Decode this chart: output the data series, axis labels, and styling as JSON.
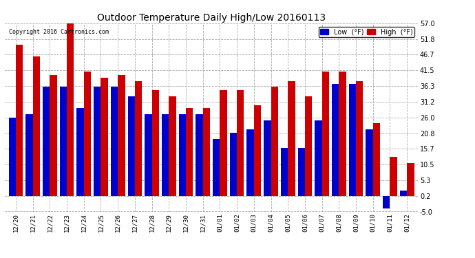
{
  "title": "Outdoor Temperature Daily High/Low 20160113",
  "copyright": "Copyright 2016 Cartronics.com",
  "legend_low": "Low  (°F)",
  "legend_high": "High  (°F)",
  "low_color": "#0000cc",
  "high_color": "#cc0000",
  "background_color": "#ffffff",
  "plot_bg_color": "#ffffff",
  "grid_color": "#aaaaaa",
  "ylim": [
    -5.0,
    57.0
  ],
  "yticks": [
    57.0,
    51.8,
    46.7,
    41.5,
    36.3,
    31.2,
    26.0,
    20.8,
    15.7,
    10.5,
    5.3,
    0.2,
    -5.0
  ],
  "categories": [
    "12/20",
    "12/21",
    "12/22",
    "12/23",
    "12/24",
    "12/25",
    "12/26",
    "12/27",
    "12/28",
    "12/29",
    "12/30",
    "12/31",
    "01/01",
    "01/02",
    "01/03",
    "01/04",
    "01/05",
    "01/06",
    "01/07",
    "01/08",
    "01/09",
    "01/10",
    "01/11",
    "01/12"
  ],
  "high_values": [
    50,
    46,
    40,
    57,
    41,
    39,
    40,
    38,
    35,
    33,
    29,
    29,
    35,
    35,
    30,
    36,
    38,
    33,
    41,
    41,
    38,
    24,
    13,
    11
  ],
  "low_values": [
    26,
    27,
    36,
    36,
    29,
    36,
    36,
    33,
    27,
    27,
    27,
    27,
    19,
    21,
    22,
    25,
    16,
    16,
    25,
    37,
    37,
    22,
    -4,
    2
  ]
}
